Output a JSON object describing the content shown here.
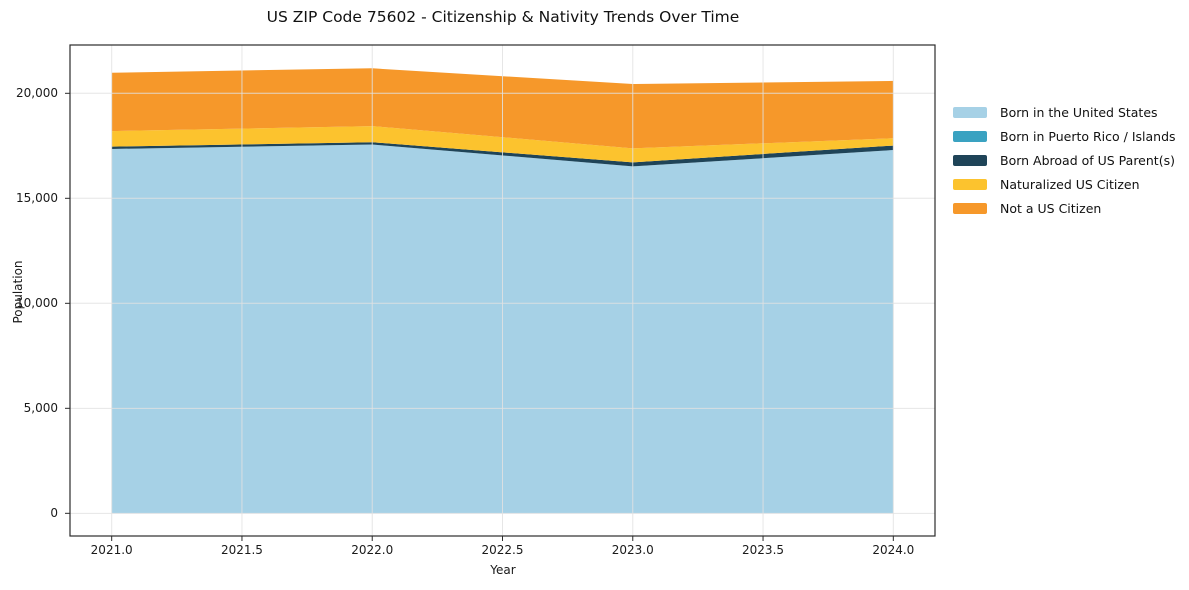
{
  "chart_data": {
    "type": "area",
    "stacked": true,
    "title": "US ZIP Code 75602 - Citizenship & Nativity Trends Over Time",
    "xlabel": "Year",
    "ylabel": "Population",
    "x": [
      2021,
      2022,
      2023,
      2024
    ],
    "series": [
      {
        "name": "Born in the United States",
        "color": "#a6d1e6",
        "values": [
          17350,
          17560,
          16520,
          17300
        ]
      },
      {
        "name": "Born in Puerto Rico / Islands",
        "color": "#3aa2c1",
        "values": [
          0,
          0,
          0,
          0
        ]
      },
      {
        "name": "Born Abroad of US Parent(s)",
        "color": "#1f4458",
        "values": [
          110,
          110,
          190,
          210
        ]
      },
      {
        "name": "Naturalized US Citizen",
        "color": "#fcc32e",
        "values": [
          740,
          770,
          670,
          350
        ]
      },
      {
        "name": "Not a US Citizen",
        "color": "#f6982a",
        "values": [
          2780,
          2750,
          3060,
          2730
        ]
      }
    ],
    "totals": [
      20980,
      21190,
      20440,
      20590
    ],
    "x_ticks": [
      2021.0,
      2021.5,
      2022.0,
      2022.5,
      2023.0,
      2023.5,
      2024.0
    ],
    "x_tick_labels": [
      "2021.0",
      "2021.5",
      "2022.0",
      "2022.5",
      "2023.0",
      "2023.5",
      "2024.0"
    ],
    "y_ticks": [
      0,
      5000,
      10000,
      15000,
      20000
    ],
    "y_tick_labels": [
      "0",
      "5,000",
      "10,000",
      "15,000",
      "20,000"
    ],
    "xlim": [
      2020.84,
      2024.16
    ],
    "ylim": [
      -1080,
      22300
    ],
    "grid": true,
    "grid_above_areas": true,
    "legend_position": "right"
  }
}
